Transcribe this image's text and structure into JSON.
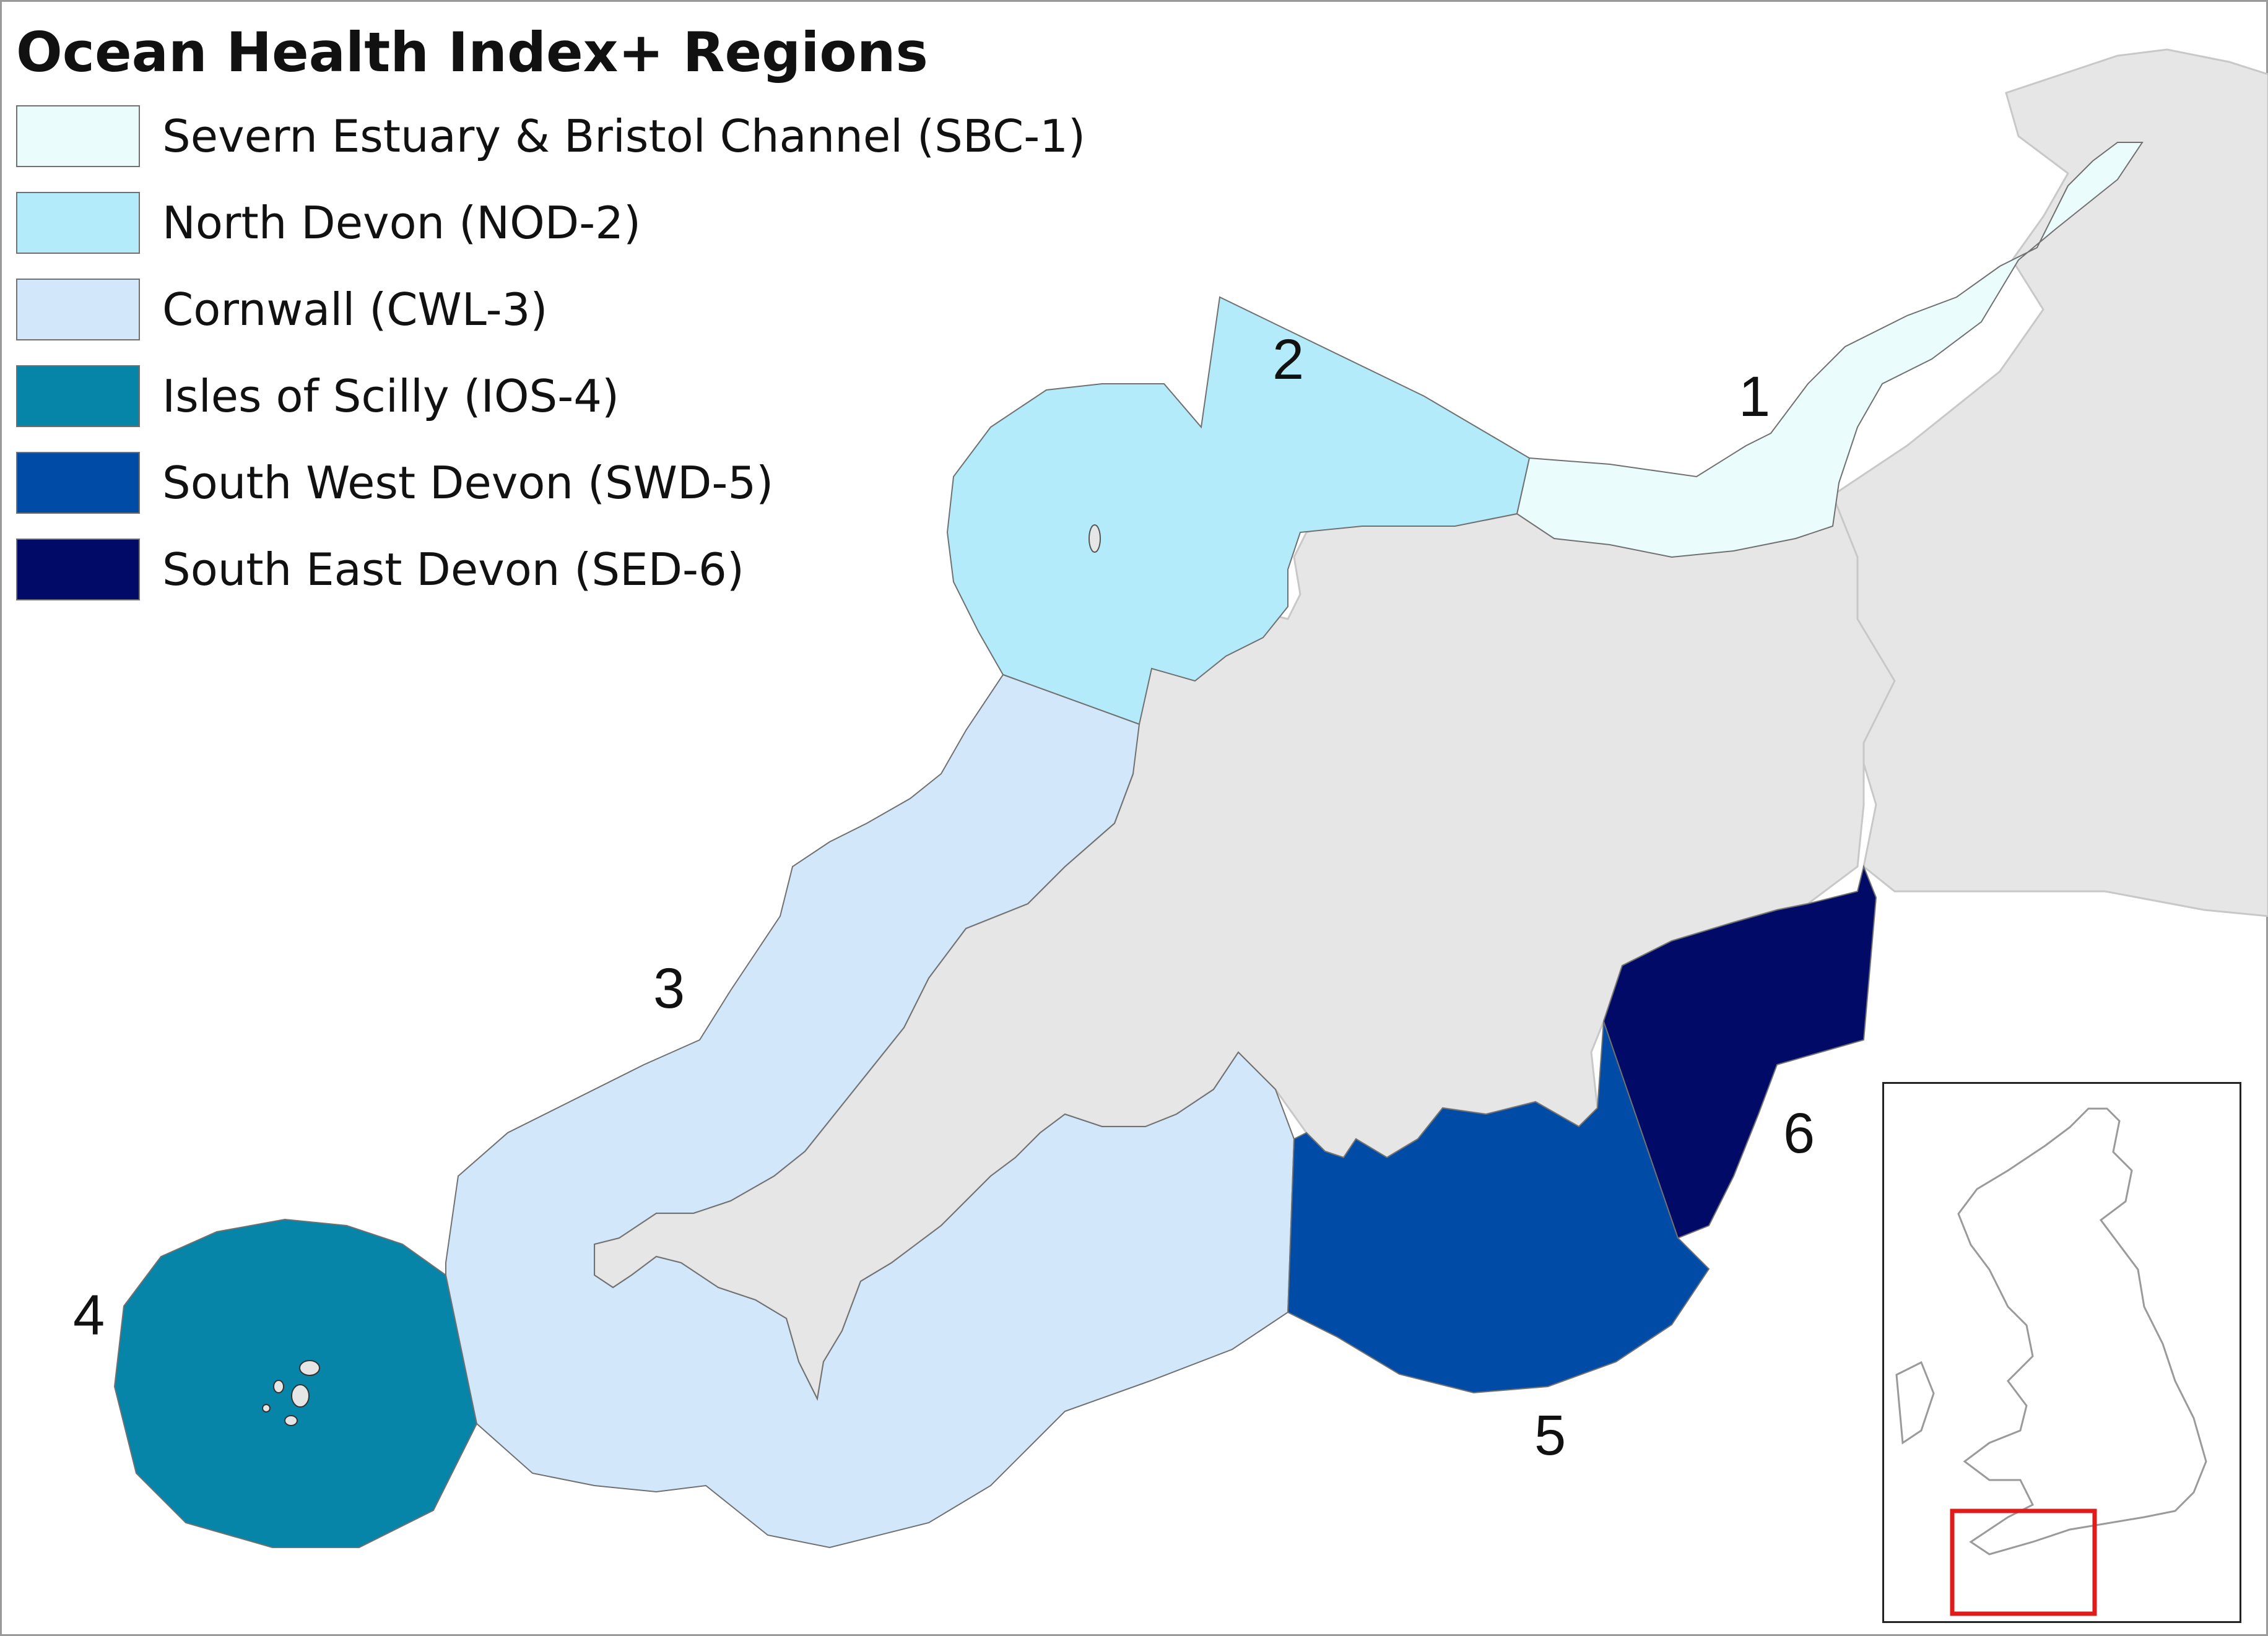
{
  "title": "Ocean Health Index+ Regions",
  "legend": [
    {
      "label": "Severn Estuary & Bristol Channel (SBC-1)",
      "color": "#ebfcfd"
    },
    {
      "label": "North Devon (NOD-2)",
      "color": "#b3ebfa"
    },
    {
      "label": "Cornwall (CWL-3)",
      "color": "#d3e7fb"
    },
    {
      "label": "Isles of Scilly (IOS-4)",
      "color": "#0785a9"
    },
    {
      "label": "South West Devon (SWD-5)",
      "color": "#004ba6"
    },
    {
      "label": "South East Devon (SED-6)",
      "color": "#010a66"
    }
  ],
  "region_numbers": {
    "r1": "1",
    "r2": "2",
    "r3": "3",
    "r4": "4",
    "r5": "5",
    "r6": "6"
  },
  "colors": {
    "land": "#e6e6e6",
    "land_border": "#c8c8c8",
    "inset_highlight": "#e01b1b"
  }
}
